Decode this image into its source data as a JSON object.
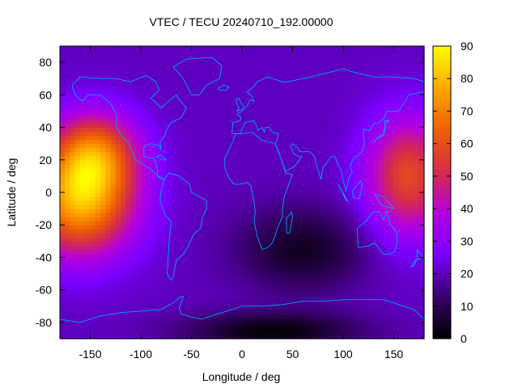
{
  "chart_data": {
    "type": "heatmap",
    "title": "VTEC / TECU 20240710_192.00000",
    "xlabel": "Longitude / deg",
    "ylabel": "Latitude / deg",
    "xlim": [
      -180,
      180
    ],
    "ylim": [
      -90,
      90
    ],
    "x_ticks": [
      -150,
      -100,
      -50,
      0,
      50,
      100,
      150
    ],
    "y_ticks": [
      -80,
      -60,
      -40,
      -20,
      0,
      20,
      40,
      60,
      80
    ],
    "colorbar": {
      "label": "",
      "range": [
        0,
        90
      ],
      "ticks": [
        0,
        10,
        20,
        30,
        40,
        50,
        60,
        70,
        80,
        90
      ],
      "colormap": [
        "#000000",
        "#3a006e",
        "#7b00ff",
        "#b400e0",
        "#d62c4a",
        "#ef6000",
        "#ffa700",
        "#ffff00"
      ]
    },
    "grid": "5x2.5 deg cells",
    "features": [
      {
        "name": "Pacific enhancement (west)",
        "lon": -160,
        "lat": -5,
        "peak": 76,
        "sigma_lon": 38,
        "sigma_lat": 24
      },
      {
        "name": "Pacific enhancement (west, north lobe)",
        "lon": -145,
        "lat": 25,
        "peak": 56,
        "sigma_lon": 30,
        "sigma_lat": 18
      },
      {
        "name": "Eastern Pacific enhancement",
        "lon": 165,
        "lat": 10,
        "peak": 58,
        "sigma_lon": 30,
        "sigma_lat": 26
      },
      {
        "name": "Indian Ocean trough",
        "lon": 60,
        "lat": -35,
        "value": 4,
        "sigma_lon": 45,
        "sigma_lat": 18
      },
      {
        "name": "Southern polar minimum",
        "lon": 30,
        "lat": -85,
        "value": 1,
        "sigma_lon": 60,
        "sigma_lat": 8
      }
    ],
    "background_level": 20,
    "overlay": "continent coastlines"
  },
  "colors": {
    "coastline": "#00a0ff",
    "frame": "#000000"
  }
}
